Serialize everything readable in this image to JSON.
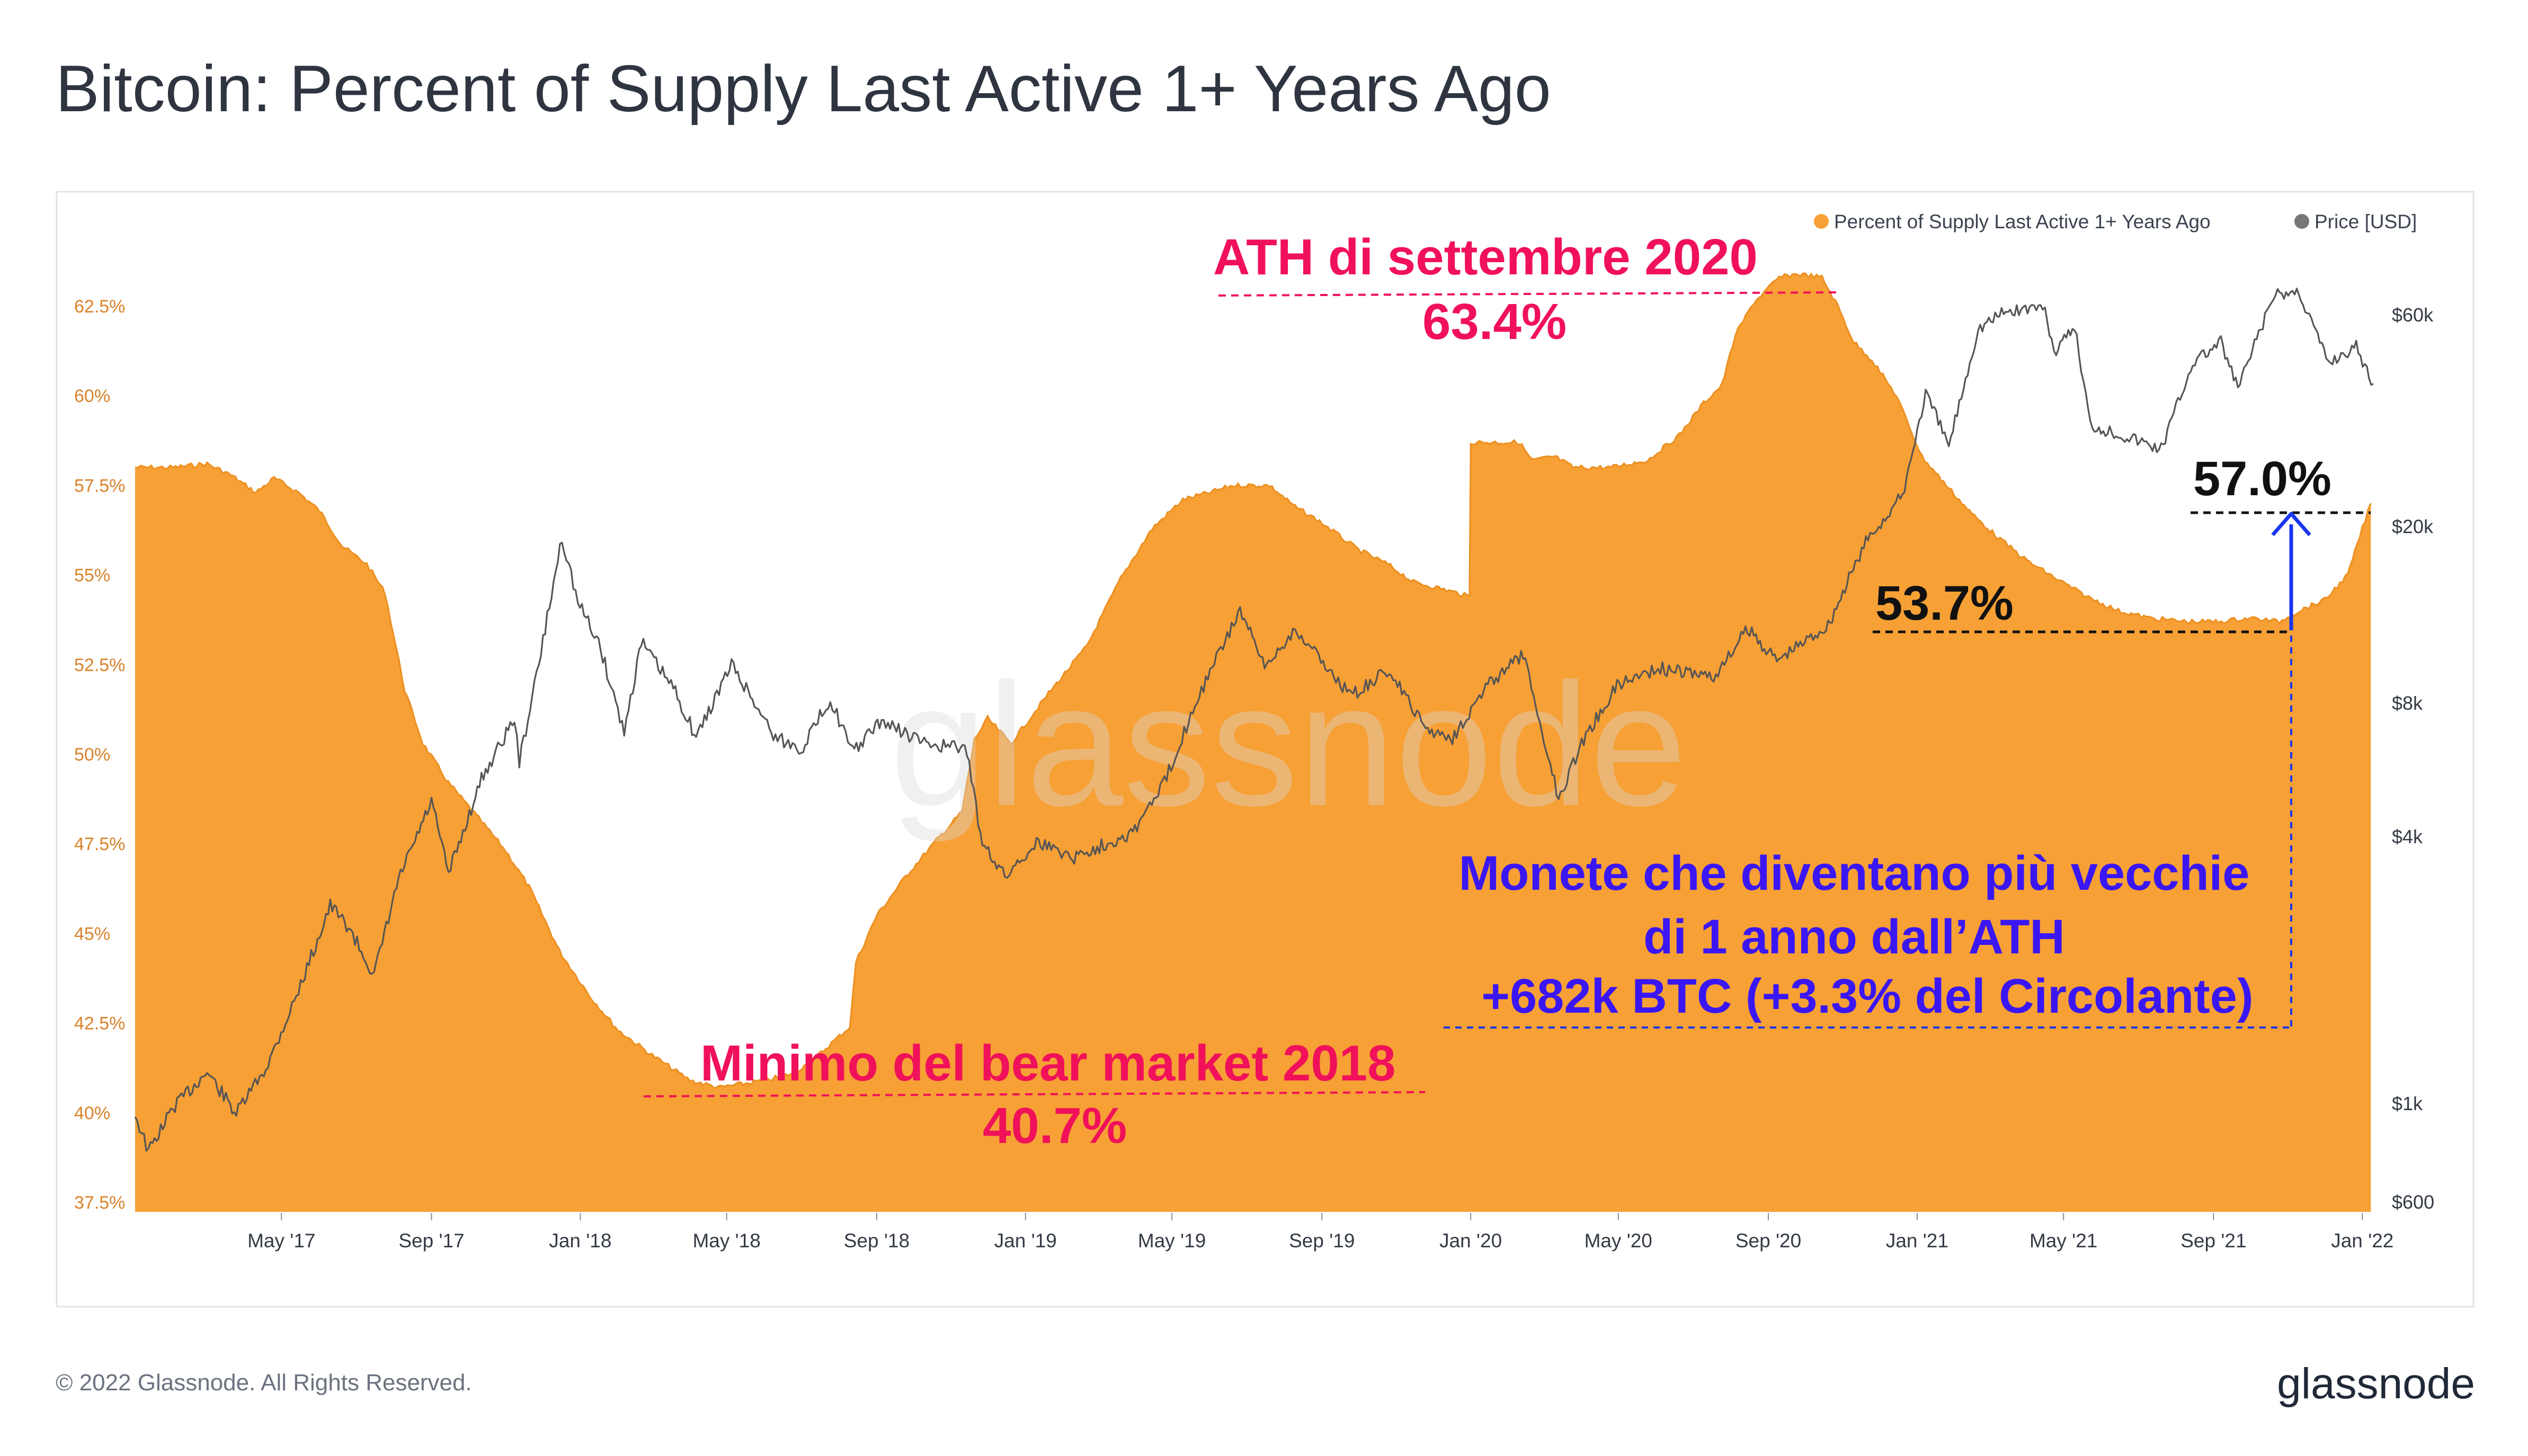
{
  "title": "Bitcoin: Percent of Supply Last Active 1+ Years Ago",
  "footer": {
    "copyright": "© 2022 Glassnode. All Rights Reserved.",
    "brand": "glassnode"
  },
  "watermark": "glassnode",
  "colors": {
    "supply_fill": "#f7a035",
    "price_line": "#555555",
    "annotation_red": "#f0115a",
    "annotation_blue": "#3a17f2",
    "annotation_black": "#111111"
  },
  "chart_data": {
    "type": "area",
    "title": "Bitcoin: Percent of Supply Last Active 1+ Years Ago",
    "x_labels": [
      "May '17",
      "Sep '17",
      "Jan '18",
      "May '18",
      "Sep '18",
      "Jan '19",
      "May '19",
      "Sep '19",
      "Jan '20",
      "May '20",
      "Sep '20",
      "Jan '21",
      "May '21",
      "Sep '21",
      "Jan '22"
    ],
    "y_left_ticks": [
      "62.5%",
      "60%",
      "57.5%",
      "55%",
      "52.5%",
      "50%",
      "47.5%",
      "45%",
      "42.5%",
      "40%",
      "37.5%"
    ],
    "y_left_values": [
      62.5,
      60,
      57.5,
      55,
      52.5,
      50,
      47.5,
      45,
      42.5,
      40,
      37.5
    ],
    "y_left_range": [
      37.5,
      63.9
    ],
    "y_right_ticks": [
      "$60k",
      "$20k",
      "$8k",
      "$4k",
      "$1k",
      "$600"
    ],
    "y_right_values": [
      60000,
      20000,
      8000,
      4000,
      1000,
      600
    ],
    "y_right_scale": "log",
    "grid": false,
    "legend_position": "top-right",
    "legend": [
      "Percent of Supply Last Active 1+ Years Ago",
      "Price [USD]"
    ],
    "series": [
      {
        "name": "Percent of Supply Last Active 1+ Years Ago",
        "type": "area",
        "axis": "left",
        "points": [
          [
            "2017-01-01",
            58.0
          ],
          [
            "2017-02-01",
            58.0
          ],
          [
            "2017-03-01",
            58.1
          ],
          [
            "2017-03-20",
            57.8
          ],
          [
            "2017-04-10",
            57.3
          ],
          [
            "2017-04-25",
            57.7
          ],
          [
            "2017-05-15",
            57.3
          ],
          [
            "2017-06-01",
            56.8
          ],
          [
            "2017-06-20",
            55.8
          ],
          [
            "2017-07-10",
            55.3
          ],
          [
            "2017-07-25",
            54.5
          ],
          [
            "2017-08-10",
            51.8
          ],
          [
            "2017-08-25",
            50.3
          ],
          [
            "2017-09-15",
            49.2
          ],
          [
            "2017-10-10",
            48.2
          ],
          [
            "2017-11-01",
            47.3
          ],
          [
            "2017-11-20",
            46.3
          ],
          [
            "2017-12-15",
            44.5
          ],
          [
            "2018-01-10",
            43.2
          ],
          [
            "2018-02-01",
            42.3
          ],
          [
            "2018-03-01",
            41.6
          ],
          [
            "2018-04-01",
            40.9
          ],
          [
            "2018-04-25",
            40.7
          ],
          [
            "2018-06-01",
            40.9
          ],
          [
            "2018-06-25",
            41.1
          ],
          [
            "2018-07-15",
            41.6
          ],
          [
            "2018-07-28",
            42.0
          ],
          [
            "2018-08-10",
            42.4
          ],
          [
            "2018-08-15",
            44.2
          ],
          [
            "2018-09-01",
            45.5
          ],
          [
            "2018-09-25",
            46.6
          ],
          [
            "2018-10-20",
            47.6
          ],
          [
            "2018-11-10",
            48.4
          ],
          [
            "2018-11-20",
            50.4
          ],
          [
            "2018-12-01",
            51.0
          ],
          [
            "2018-12-20",
            50.3
          ],
          [
            "2019-01-20",
            51.7
          ],
          [
            "2019-02-20",
            53.0
          ],
          [
            "2019-03-20",
            54.9
          ],
          [
            "2019-04-15",
            56.3
          ],
          [
            "2019-05-10",
            57.1
          ],
          [
            "2019-06-01",
            57.3
          ],
          [
            "2019-06-20",
            57.5
          ],
          [
            "2019-07-20",
            57.5
          ],
          [
            "2019-08-10",
            56.9
          ],
          [
            "2019-08-30",
            56.5
          ],
          [
            "2019-09-15",
            56.1
          ],
          [
            "2019-10-01",
            55.7
          ],
          [
            "2019-10-25",
            55.3
          ],
          [
            "2019-11-15",
            54.8
          ],
          [
            "2019-12-10",
            54.6
          ],
          [
            "2019-12-31",
            54.4
          ],
          [
            "2020-01-01",
            58.7
          ],
          [
            "2020-02-10",
            58.7
          ],
          [
            "2020-02-20",
            58.2
          ],
          [
            "2020-03-10",
            58.3
          ],
          [
            "2020-03-25",
            58.0
          ],
          [
            "2020-04-25",
            58.0
          ],
          [
            "2020-05-25",
            58.2
          ],
          [
            "2020-06-20",
            58.9
          ],
          [
            "2020-07-10",
            59.8
          ],
          [
            "2020-07-25",
            60.3
          ],
          [
            "2020-08-05",
            61.7
          ],
          [
            "2020-08-20",
            62.6
          ],
          [
            "2020-09-10",
            63.3
          ],
          [
            "2020-09-25",
            63.4
          ],
          [
            "2020-10-15",
            63.3
          ],
          [
            "2020-10-28",
            62.5
          ],
          [
            "2020-11-10",
            61.5
          ],
          [
            "2020-11-25",
            61.0
          ],
          [
            "2020-12-15",
            60.0
          ],
          [
            "2021-01-05",
            58.3
          ],
          [
            "2021-01-25",
            57.5
          ],
          [
            "2021-02-15",
            56.7
          ],
          [
            "2021-03-10",
            56.0
          ],
          [
            "2021-04-01",
            55.4
          ],
          [
            "2021-04-25",
            54.9
          ],
          [
            "2021-05-20",
            54.4
          ],
          [
            "2021-06-15",
            54.0
          ],
          [
            "2021-07-10",
            53.8
          ],
          [
            "2021-08-10",
            53.7
          ],
          [
            "2021-09-05",
            53.7
          ],
          [
            "2021-10-01",
            53.8
          ],
          [
            "2021-10-25",
            53.7
          ],
          [
            "2021-11-10",
            54.0
          ],
          [
            "2021-12-01",
            54.3
          ],
          [
            "2021-12-20",
            55.0
          ],
          [
            "2022-01-01",
            56.3
          ],
          [
            "2022-01-08",
            57.0
          ]
        ]
      },
      {
        "name": "Price [USD]",
        "type": "line",
        "axis": "right",
        "points": [
          [
            "2017-01-01",
            950
          ],
          [
            "2017-01-12",
            780
          ],
          [
            "2017-02-01",
            980
          ],
          [
            "2017-03-01",
            1180
          ],
          [
            "2017-03-25",
            950
          ],
          [
            "2017-04-20",
            1230
          ],
          [
            "2017-05-15",
            1800
          ],
          [
            "2017-06-10",
            2800
          ],
          [
            "2017-06-25",
            2500
          ],
          [
            "2017-07-16",
            1950
          ],
          [
            "2017-08-05",
            3200
          ],
          [
            "2017-09-01",
            4800
          ],
          [
            "2017-09-15",
            3300
          ],
          [
            "2017-10-12",
            5400
          ],
          [
            "2017-11-08",
            7400
          ],
          [
            "2017-11-12",
            5900
          ],
          [
            "2017-11-28",
            9800
          ],
          [
            "2017-12-17",
            19000
          ],
          [
            "2017-12-30",
            13500
          ],
          [
            "2018-01-16",
            11000
          ],
          [
            "2018-02-06",
            6900
          ],
          [
            "2018-02-20",
            11000
          ],
          [
            "2018-03-20",
            8500
          ],
          [
            "2018-04-06",
            6700
          ],
          [
            "2018-05-05",
            9800
          ],
          [
            "2018-06-10",
            6700
          ],
          [
            "2018-07-01",
            6300
          ],
          [
            "2018-07-25",
            8200
          ],
          [
            "2018-08-12",
            6200
          ],
          [
            "2018-09-05",
            7300
          ],
          [
            "2018-10-10",
            6500
          ],
          [
            "2018-11-14",
            6300
          ],
          [
            "2018-11-25",
            4000
          ],
          [
            "2018-12-15",
            3250
          ],
          [
            "2019-01-10",
            3900
          ],
          [
            "2019-02-10",
            3600
          ],
          [
            "2019-03-30",
            4100
          ],
          [
            "2019-04-25",
            5300
          ],
          [
            "2019-05-20",
            8000
          ],
          [
            "2019-06-26",
            13000
          ],
          [
            "2019-07-16",
            9600
          ],
          [
            "2019-08-10",
            11800
          ],
          [
            "2019-09-25",
            8300
          ],
          [
            "2019-10-26",
            9500
          ],
          [
            "2019-11-25",
            7000
          ],
          [
            "2019-12-17",
            6700
          ],
          [
            "2020-01-15",
            8800
          ],
          [
            "2020-02-13",
            10300
          ],
          [
            "2020-03-13",
            4900
          ],
          [
            "2020-04-01",
            6500
          ],
          [
            "2020-04-30",
            8800
          ],
          [
            "2020-06-01",
            9600
          ],
          [
            "2020-07-20",
            9200
          ],
          [
            "2020-08-15",
            11800
          ],
          [
            "2020-09-08",
            10000
          ],
          [
            "2020-10-20",
            12000
          ],
          [
            "2020-11-20",
            18500
          ],
          [
            "2020-12-20",
            23500
          ],
          [
            "2021-01-08",
            40000
          ],
          [
            "2021-01-27",
            30500
          ],
          [
            "2021-02-20",
            56000
          ],
          [
            "2021-03-13",
            61000
          ],
          [
            "2021-04-14",
            63000
          ],
          [
            "2021-04-25",
            49000
          ],
          [
            "2021-05-10",
            57000
          ],
          [
            "2021-05-23",
            34000
          ],
          [
            "2021-06-22",
            32000
          ],
          [
            "2021-07-20",
            30000
          ],
          [
            "2021-08-15",
            47000
          ],
          [
            "2021-09-07",
            52000
          ],
          [
            "2021-09-21",
            41000
          ],
          [
            "2021-10-20",
            66000
          ],
          [
            "2021-11-10",
            68000
          ],
          [
            "2021-12-04",
            47000
          ],
          [
            "2021-12-27",
            51000
          ],
          [
            "2022-01-10",
            42000
          ]
        ]
      }
    ],
    "annotations": {
      "ath_label": "ATH di settembre 2020",
      "ath_value": "63.4%",
      "bear_label": "Minimo del bear market 2018",
      "bear_value": "40.7%",
      "current_value": "57.0%",
      "previous_value": "53.7%",
      "blue_line1": "Monete che diventano più vecchie",
      "blue_line2": "di 1 anno dall’ATH",
      "blue_line3": "+682k BTC (+3.3% del Circolante)"
    }
  }
}
